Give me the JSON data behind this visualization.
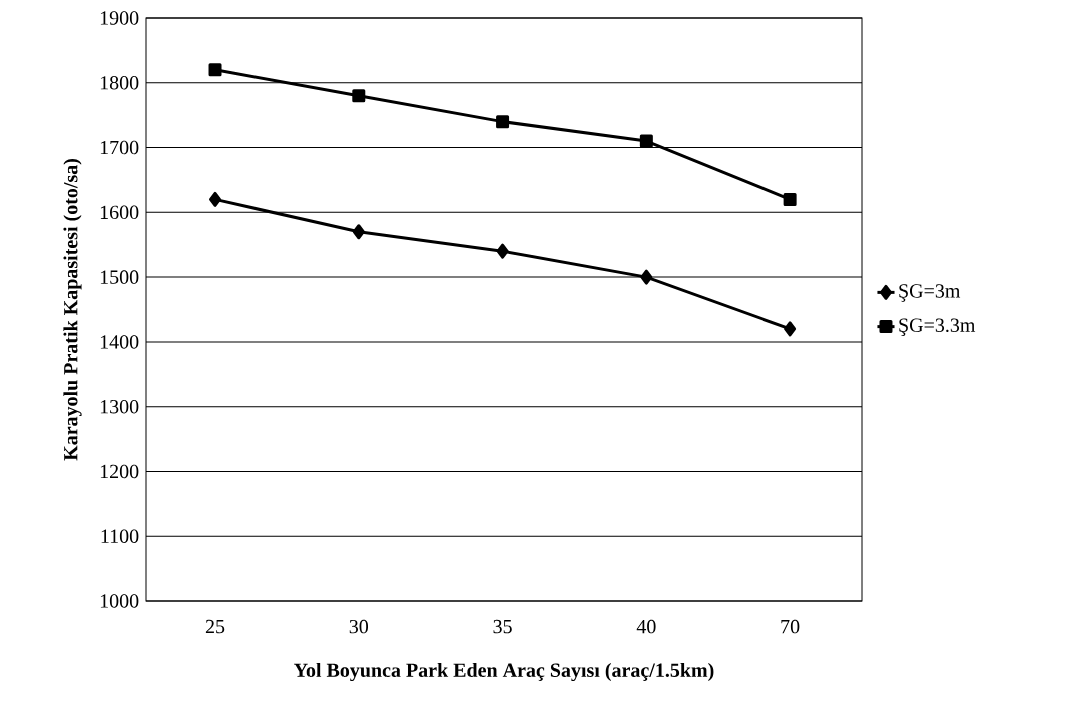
{
  "chart_data": {
    "type": "line",
    "xlabel": "Yol Boyunca Park Eden Araç Sayısı (araç/1.5km)",
    "ylabel": "Karayolu Pratik Kapasitesi (oto/sa)",
    "categories": [
      "25",
      "30",
      "35",
      "40",
      "70"
    ],
    "series": [
      {
        "name": "ŞG=3m",
        "color": "#000000",
        "marker": "diamond",
        "values": [
          1620,
          1570,
          1540,
          1500,
          1420
        ]
      },
      {
        "name": "ŞG=3.3m",
        "color": "#000000",
        "marker": "square",
        "values": [
          1820,
          1780,
          1740,
          1710,
          1620
        ]
      }
    ],
    "ylim": [
      1000,
      1900
    ],
    "yticks": [
      1000,
      1100,
      1200,
      1300,
      1400,
      1500,
      1600,
      1700,
      1800,
      1900
    ],
    "grid": "y",
    "legend": "right",
    "line_style": "solid"
  }
}
